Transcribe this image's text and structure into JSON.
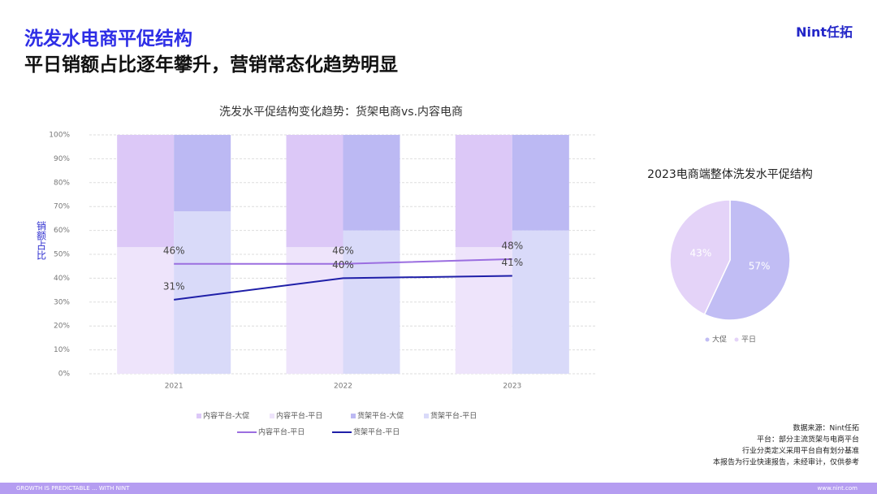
{
  "header": {
    "title": "洗发水电商平促结构",
    "subtitle": "平日销额占比逐年攀升，营销常态化趋势明显",
    "logo": "Nint任拓"
  },
  "chart_data": [
    {
      "type": "bar",
      "title": "洗发水平促结构变化趋势：货架电商vs.内容电商",
      "y_label": "销额占比",
      "categories": [
        "2021",
        "2022",
        "2023"
      ],
      "ylim": [
        0,
        100
      ],
      "yticks": [
        {
          "value": 0,
          "label": "0%"
        },
        {
          "value": 10,
          "label": "10%"
        },
        {
          "value": 20,
          "label": "20%"
        },
        {
          "value": 30,
          "label": "30%"
        },
        {
          "value": 40,
          "label": "40%"
        },
        {
          "value": 50,
          "label": "50%"
        },
        {
          "value": 60,
          "label": "60%"
        },
        {
          "value": 70,
          "label": "70%"
        },
        {
          "value": 80,
          "label": "80%"
        },
        {
          "value": 90,
          "label": "90%"
        },
        {
          "value": 100,
          "label": "100%"
        }
      ],
      "grid": true,
      "series": [
        {
          "name": "内容平台-大促",
          "type": "bar",
          "color": "#dcc8f7",
          "values": [
            47,
            47,
            47
          ]
        },
        {
          "name": "内容平台-平日",
          "type": "bar",
          "color": "#eee4fb",
          "values": [
            53,
            53,
            53
          ]
        },
        {
          "name": "货架平台-大促",
          "type": "bar",
          "color": "#bcb9f3",
          "values": [
            32,
            40,
            40
          ]
        },
        {
          "name": "货架平台-平日",
          "type": "bar",
          "color": "#d9daf9",
          "values": [
            68,
            60,
            60
          ]
        },
        {
          "name": "内容平台-平日",
          "type": "line",
          "color": "#9b6ee0",
          "values": [
            46,
            46,
            48
          ],
          "value_labels": [
            "46%",
            "46%",
            "48%"
          ]
        },
        {
          "name": "货架平台-平日",
          "type": "line",
          "color": "#1f1fa8",
          "values": [
            31,
            40,
            41
          ],
          "value_labels": [
            "31%",
            "40%",
            "41%"
          ]
        }
      ]
    },
    {
      "type": "pie",
      "title": "2023电商端整体洗发水平促结构",
      "categories": [
        "大促",
        "平日"
      ],
      "values": [
        57,
        43
      ],
      "value_labels": [
        "57%",
        "43%"
      ],
      "colors": [
        "#c1bdf4",
        "#e4d3f8"
      ]
    }
  ],
  "source": [
    "数据来源：Nint任拓",
    "平台：部分主流货架与电商平台",
    "行业分类定义采用平台自有划分基准",
    "本报告为行业快速报告，未经审计，仅供参考"
  ],
  "footer": {
    "left": "GROWTH IS PREDICTABLE ... WITH NINT",
    "right": "www.nint.com"
  }
}
